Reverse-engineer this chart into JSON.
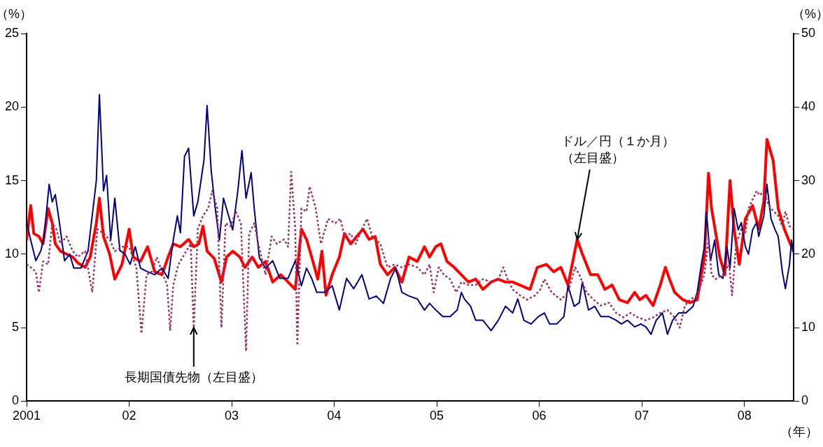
{
  "chart_data": {
    "type": "line",
    "xlabel": "（年）",
    "ylabel": "（%）",
    "y2label": "（%）",
    "xlim": [
      2001,
      2008.48
    ],
    "xticks": [
      {
        "value": 2001,
        "label": "2001"
      },
      {
        "value": 2002,
        "label": "02"
      },
      {
        "value": 2003,
        "label": "03"
      },
      {
        "value": 2004,
        "label": "04"
      },
      {
        "value": 2005,
        "label": "05"
      },
      {
        "value": 2006,
        "label": "06"
      },
      {
        "value": 2007,
        "label": "07"
      },
      {
        "value": 2008,
        "label": "08"
      }
    ],
    "ylim": [
      0,
      25
    ],
    "yticks": [
      0,
      5,
      10,
      15,
      20,
      25
    ],
    "y2lim": [
      0,
      50
    ],
    "y2ticks": [
      0,
      10,
      20,
      30,
      40,
      50
    ],
    "grid": false,
    "legend": false,
    "marker": "none",
    "annotations": [
      {
        "text": "ドル／円（１か月）（左目盛）",
        "x": 2006.37,
        "y": 11
      },
      {
        "text": "長期国債先物（左目盛）",
        "x": 2002.63,
        "y": 5
      }
    ],
    "series": [
      {
        "color": "#993366",
        "line_style": "dotted",
        "x": [
          2001,
          2001.04,
          2001.09,
          2001.12,
          2001.16,
          2001.21,
          2001.25,
          2001.29,
          2001.33,
          2001.39,
          2001.45,
          2001.5,
          2001.57,
          2001.64,
          2001.69,
          2001.75,
          2001.81,
          2001.86,
          2001.93,
          2002,
          2002.07,
          2002.12,
          2002.17,
          2002.22,
          2002.27,
          2002.32,
          2002.37,
          2002.4,
          2002.43,
          2002.48,
          2002.54,
          2002.6,
          2002.63,
          2002.67,
          2002.72,
          2002.77,
          2002.81,
          2002.86,
          2002.9,
          2002.94,
          2002.99,
          2003.04,
          2003.09,
          2003.14,
          2003.17,
          2003.22,
          2003.26,
          2003.33,
          2003.39,
          2003.44,
          2003.51,
          2003.55,
          2003.58,
          2003.62,
          2003.64,
          2003.68,
          2003.73,
          2003.76,
          2003.82,
          2003.87,
          2003.94,
          2004.01,
          2004.06,
          2004.1,
          2004.16,
          2004.21,
          2004.27,
          2004.32,
          2004.37,
          2004.45,
          2004.52,
          2004.59,
          2004.66,
          2004.73,
          2004.81,
          2004.88,
          2004.93,
          2004.97,
          2005.02,
          2005.07,
          2005.13,
          2005.19,
          2005.24,
          2005.31,
          2005.38,
          2005.45,
          2005.53,
          2005.6,
          2005.65,
          2005.69,
          2005.74,
          2005.81,
          2005.88,
          2005.96,
          2006.01,
          2006.05,
          2006.12,
          2006.21,
          2006.28,
          2006.35,
          2006.39,
          2006.46,
          2006.53,
          2006.6,
          2006.68,
          2006.75,
          2006.82,
          2006.89,
          2006.96,
          2007.04,
          2007.11,
          2007.18,
          2007.25,
          2007.32,
          2007.37,
          2007.42,
          2007.47,
          2007.54,
          2007.61,
          2007.65,
          2007.68,
          2007.72,
          2007.79,
          2007.85,
          2007.88,
          2007.92,
          2007.97,
          2008.01,
          2008.04,
          2008.12,
          2008.15,
          2008.19,
          2008.22,
          2008.26,
          2008.33,
          2008.37,
          2008.4,
          2008.44,
          2008.48
        ],
        "values": [
          9.3,
          9.1,
          8.8,
          7.4,
          9.5,
          9.3,
          12.1,
          11.7,
          10.7,
          11.2,
          10.2,
          9.8,
          10.2,
          7.4,
          11.7,
          11.4,
          11.0,
          10.2,
          10.5,
          10.5,
          9.1,
          4.6,
          8.6,
          8.8,
          9.8,
          8.8,
          7.9,
          4.8,
          7.9,
          9.3,
          10.0,
          10.7,
          5.0,
          11.7,
          12.6,
          13.1,
          14.3,
          13.1,
          5.0,
          12.1,
          11.9,
          12.9,
          12.1,
          3.4,
          11.4,
          12.1,
          10.7,
          8.6,
          11.2,
          10.7,
          11.0,
          10.5,
          15.6,
          11.7,
          3.8,
          13.1,
          12.9,
          14.6,
          13.1,
          10.7,
          12.4,
          12.1,
          12.4,
          11.2,
          11.4,
          10.7,
          11.7,
          12.4,
          11.2,
          10.7,
          9.1,
          9.3,
          9.1,
          9.3,
          9.1,
          8.6,
          9.3,
          7.4,
          9.1,
          8.6,
          8.3,
          7.4,
          8.1,
          7.9,
          7.9,
          8.3,
          8.1,
          8.3,
          9.1,
          8.3,
          7.6,
          7.2,
          6.9,
          7.2,
          7.6,
          8.3,
          7.4,
          6.9,
          7.4,
          9.1,
          8.6,
          7.4,
          6.9,
          6.5,
          6.7,
          6.0,
          5.7,
          6.0,
          5.7,
          5.5,
          5.7,
          6.0,
          6.2,
          5.7,
          5.0,
          6.5,
          6.9,
          7.2,
          8.6,
          11.0,
          8.6,
          8.3,
          8.6,
          9.3,
          7.2,
          10.7,
          11.7,
          11.4,
          13.1,
          14.3,
          14.0,
          14.3,
          13.6,
          13.1,
          12.6,
          11.9,
          12.9,
          11.9,
          11.7
        ]
      },
      {
        "color": "#000080",
        "axis": "y2",
        "x": [
          2001,
          2001.04,
          2001.09,
          2001.14,
          2001.17,
          2001.22,
          2001.25,
          2001.28,
          2001.32,
          2001.37,
          2001.42,
          2001.46,
          2001.53,
          2001.6,
          2001.68,
          2001.71,
          2001.75,
          2001.78,
          2001.82,
          2001.86,
          2001.91,
          2001.96,
          2002.01,
          2002.06,
          2002.11,
          2002.18,
          2002.25,
          2002.32,
          2002.38,
          2002.43,
          2002.47,
          2002.5,
          2002.54,
          2002.58,
          2002.63,
          2002.67,
          2002.73,
          2002.76,
          2002.8,
          2002.84,
          2002.88,
          2002.92,
          2002.97,
          2003.01,
          2003.06,
          2003.1,
          2003.14,
          2003.19,
          2003.22,
          2003.27,
          2003.33,
          2003.4,
          2003.47,
          2003.55,
          2003.62,
          2003.68,
          2003.73,
          2003.78,
          2003.83,
          2003.91,
          2003.98,
          2004.05,
          2004.12,
          2004.19,
          2004.27,
          2004.34,
          2004.41,
          2004.48,
          2004.55,
          2004.6,
          2004.66,
          2004.73,
          2004.81,
          2004.88,
          2004.93,
          2004.99,
          2005.06,
          2005.13,
          2005.2,
          2005.24,
          2005.27,
          2005.33,
          2005.38,
          2005.45,
          2005.53,
          2005.6,
          2005.67,
          2005.74,
          2005.79,
          2005.85,
          2005.92,
          2005.99,
          2006.05,
          2006.1,
          2006.17,
          2006.24,
          2006.28,
          2006.34,
          2006.39,
          2006.42,
          2006.48,
          2006.54,
          2006.6,
          2006.68,
          2006.75,
          2006.8,
          2006.86,
          2006.93,
          2006.99,
          2007.04,
          2007.09,
          2007.14,
          2007.2,
          2007.25,
          2007.3,
          2007.36,
          2007.43,
          2007.5,
          2007.54,
          2007.58,
          2007.61,
          2007.63,
          2007.67,
          2007.71,
          2007.75,
          2007.79,
          2007.83,
          2007.86,
          2007.9,
          2007.94,
          2007.97,
          2008.01,
          2008.04,
          2008.08,
          2008.12,
          2008.14,
          2008.19,
          2008.22,
          2008.26,
          2008.3,
          2008.33,
          2008.37,
          2008.4,
          2008.44,
          2008.46,
          2008.48
        ],
        "values": [
          24.3,
          21.9,
          19.1,
          20.5,
          22.4,
          29.5,
          27.1,
          28.1,
          24.3,
          19.1,
          20.0,
          18.1,
          18.1,
          20.5,
          30.0,
          41.7,
          28.6,
          30.7,
          21.9,
          27.6,
          20.5,
          20.0,
          18.6,
          21.0,
          18.1,
          17.6,
          17.2,
          18.1,
          16.7,
          21.9,
          25.2,
          22.9,
          33.3,
          34.4,
          25.2,
          27.1,
          32.8,
          40.2,
          31.4,
          26.2,
          21.9,
          27.6,
          25.2,
          23.3,
          28.6,
          34.1,
          27.6,
          31.1,
          26.2,
          19.5,
          18.1,
          19.1,
          16.7,
          16.7,
          19.1,
          15.7,
          18.1,
          16.7,
          14.8,
          14.8,
          15.7,
          12.4,
          16.7,
          15.3,
          17.2,
          13.9,
          14.3,
          13.3,
          16.7,
          18.1,
          14.8,
          14.3,
          13.9,
          12.4,
          13.3,
          12.4,
          11.5,
          11.5,
          12.4,
          14.8,
          13.9,
          12.9,
          11.0,
          11.0,
          9.6,
          11.0,
          12.9,
          12.0,
          13.9,
          11.0,
          10.5,
          11.5,
          12.0,
          10.5,
          10.5,
          11.5,
          15.7,
          12.9,
          13.4,
          16.2,
          12.4,
          12.9,
          11.5,
          11.5,
          11.0,
          10.5,
          11.0,
          10.1,
          10.5,
          10.1,
          9.1,
          11.0,
          12.0,
          9.1,
          11.0,
          12.0,
          12.0,
          12.9,
          14.8,
          18.6,
          21.0,
          25.7,
          19.1,
          21.9,
          17.2,
          16.7,
          21.0,
          18.1,
          26.2,
          23.3,
          24.3,
          21.0,
          20.0,
          23.3,
          24.3,
          22.4,
          25.2,
          29.5,
          24.8,
          23.3,
          22.4,
          17.6,
          15.3,
          18.6,
          21.9,
          20.0
        ]
      },
      {
        "color": "#ff0000",
        "x": [
          2001,
          2001.04,
          2001.07,
          2001.12,
          2001.16,
          2001.21,
          2001.25,
          2001.28,
          2001.33,
          2001.39,
          2001.45,
          2001.5,
          2001.57,
          2001.62,
          2001.68,
          2001.71,
          2001.75,
          2001.81,
          2001.86,
          2001.93,
          2002,
          2002.04,
          2002.11,
          2002.18,
          2002.25,
          2002.32,
          2002.38,
          2002.43,
          2002.5,
          2002.58,
          2002.63,
          2002.68,
          2002.72,
          2002.76,
          2002.83,
          2002.9,
          2002.95,
          2003.01,
          2003.08,
          2003.13,
          2003.2,
          2003.26,
          2003.33,
          2003.4,
          2003.48,
          2003.55,
          2003.62,
          2003.68,
          2003.73,
          2003.78,
          2003.84,
          2003.88,
          2003.92,
          2003.98,
          2004.05,
          2004.1,
          2004.16,
          2004.22,
          2004.28,
          2004.34,
          2004.4,
          2004.45,
          2004.52,
          2004.59,
          2004.66,
          2004.73,
          2004.81,
          2004.88,
          2004.93,
          2004.99,
          2005.04,
          2005.1,
          2005.17,
          2005.24,
          2005.31,
          2005.38,
          2005.45,
          2005.53,
          2005.6,
          2005.67,
          2005.74,
          2005.81,
          2005.91,
          2005.98,
          2006.07,
          2006.14,
          2006.21,
          2006.28,
          2006.37,
          2006.42,
          2006.5,
          2006.57,
          2006.64,
          2006.71,
          2006.78,
          2006.86,
          2006.93,
          2006.98,
          2007.04,
          2007.11,
          2007.18,
          2007.23,
          2007.27,
          2007.32,
          2007.4,
          2007.47,
          2007.54,
          2007.61,
          2007.65,
          2007.68,
          2007.76,
          2007.81,
          2007.86,
          2007.9,
          2007.95,
          2008.01,
          2008.08,
          2008.14,
          2008.19,
          2008.22,
          2008.28,
          2008.33,
          2008.39,
          2008.43,
          2008.48
        ],
        "values": [
          10.96,
          13.3,
          11.4,
          11.2,
          10.7,
          13.1,
          12.1,
          10.7,
          10.2,
          10.0,
          9.8,
          9.4,
          9.1,
          9.8,
          12.1,
          13.8,
          11.2,
          10.0,
          8.3,
          9.3,
          11.7,
          9.8,
          9.5,
          10.5,
          8.8,
          8.6,
          9.8,
          10.7,
          10.5,
          11.0,
          10.5,
          10.7,
          11.9,
          10.2,
          9.7,
          8.1,
          9.8,
          10.2,
          9.8,
          9.1,
          9.8,
          9.1,
          9.5,
          8.1,
          8.6,
          8.1,
          7.6,
          11.7,
          11.0,
          9.8,
          8.3,
          10.2,
          7.2,
          8.6,
          9.8,
          11.4,
          10.7,
          11.2,
          11.7,
          11.0,
          11.2,
          9.3,
          8.6,
          9.1,
          8.1,
          9.8,
          9.5,
          10.5,
          9.8,
          10.5,
          10.7,
          9.5,
          9.1,
          8.6,
          8.1,
          8.3,
          7.6,
          8.1,
          8.3,
          8.1,
          8.1,
          7.9,
          7.6,
          9.1,
          9.3,
          8.8,
          9.1,
          7.9,
          11.0,
          10.0,
          8.6,
          8.6,
          7.6,
          7.9,
          6.9,
          6.7,
          7.4,
          6.9,
          7.2,
          6.5,
          7.9,
          9.1,
          8.3,
          7.4,
          6.9,
          6.7,
          6.9,
          9.8,
          15.5,
          13.1,
          9.8,
          8.6,
          15.0,
          11.7,
          9.3,
          12.4,
          13.3,
          11.7,
          13.6,
          17.8,
          16.4,
          13.1,
          11.7,
          11.0,
          10.2
        ]
      }
    ]
  }
}
